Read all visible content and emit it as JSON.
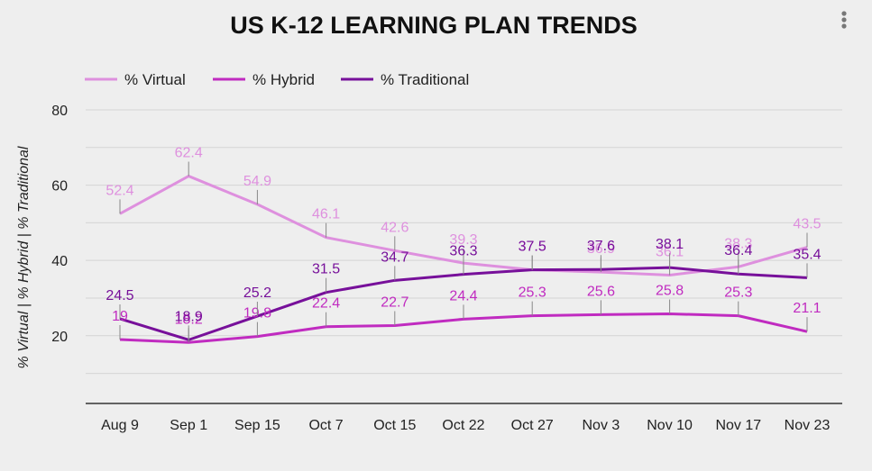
{
  "chart_data": {
    "type": "line",
    "title": "US K-12 LEARNING PLAN TRENDS",
    "ylabel": "% Virtual | % Hybrid | % Traditional",
    "xlabel": "",
    "categories": [
      "Aug 9",
      "Sep 1",
      "Sep 15",
      "Oct 7",
      "Oct 15",
      "Oct 22",
      "Oct 27",
      "Nov 3",
      "Nov 10",
      "Nov 17",
      "Nov 23"
    ],
    "ylim": [
      2,
      80
    ],
    "yticks": [
      20,
      40,
      60,
      80
    ],
    "grid": true,
    "legend_position": "top-left",
    "series": [
      {
        "name": "% Virtual",
        "color": "#de90de",
        "values": [
          52.4,
          62.4,
          54.9,
          46.1,
          42.6,
          39.3,
          37.5,
          36.9,
          36.1,
          38.3,
          43.5
        ]
      },
      {
        "name": "% Hybrid",
        "color": "#c02bc0",
        "values": [
          19,
          18.2,
          19.8,
          22.4,
          22.7,
          24.4,
          25.3,
          25.6,
          25.8,
          25.3,
          21.1
        ]
      },
      {
        "name": "% Traditional",
        "color": "#77109a",
        "values": [
          24.5,
          18.9,
          25.2,
          31.5,
          34.7,
          36.3,
          37.5,
          37.6,
          38.1,
          36.4,
          35.4
        ]
      }
    ]
  },
  "icons": {
    "menu": "more-vert-icon"
  }
}
